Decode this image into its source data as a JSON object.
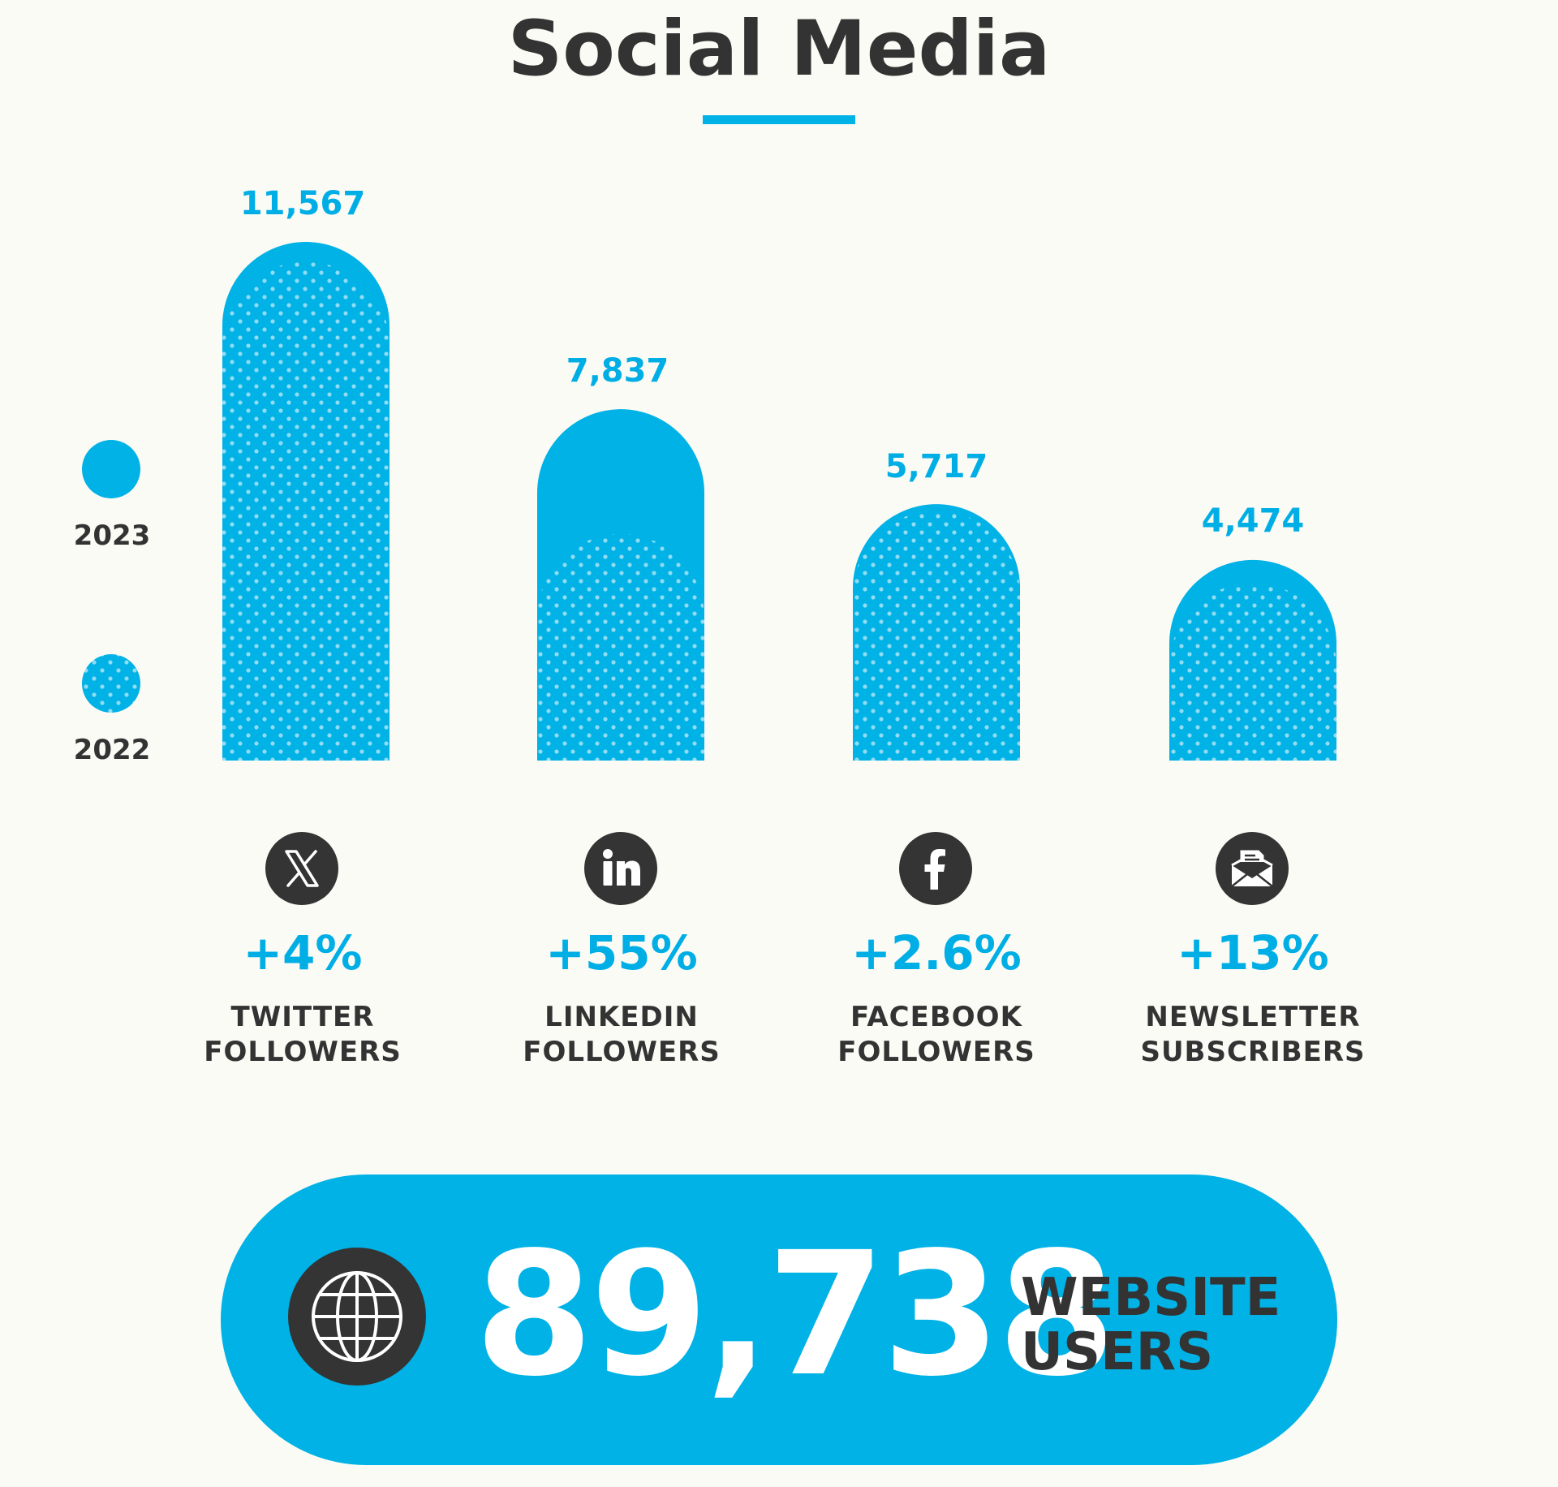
{
  "title": "Social Media",
  "colors": {
    "accent": "#00b2e6",
    "dark": "#343434",
    "dots": "#8fdcf4",
    "background": "#fbfbf5"
  },
  "legend": [
    {
      "label": "2023",
      "style": "solid"
    },
    {
      "label": "2022",
      "style": "dotted"
    }
  ],
  "chart_data": {
    "type": "bar",
    "categories": [
      "TWITTER FOLLOWERS",
      "LINKEDIN FOLLOWERS",
      "FACEBOOK FOLLOWERS",
      "NEWSLETTER SUBSCRIBERS"
    ],
    "series": [
      {
        "name": "2023",
        "values": [
          11567,
          7837,
          5717,
          4474
        ]
      },
      {
        "name": "2022",
        "values": [
          11122,
          5056,
          5572,
          3959
        ]
      }
    ],
    "value_labels": [
      "11,567",
      "7,837",
      "5,717",
      "4,474"
    ],
    "ylim": [
      0,
      11567
    ],
    "grid": false,
    "legend_position": "left"
  },
  "items": [
    {
      "icon": "x-logo-icon",
      "change": "+4%",
      "label_line1": "TWITTER",
      "label_line2": "FOLLOWERS"
    },
    {
      "icon": "linkedin-icon",
      "change": "+55%",
      "label_line1": "LINKEDIN",
      "label_line2": "FOLLOWERS"
    },
    {
      "icon": "facebook-icon",
      "change": "+2.6%",
      "label_line1": "FACEBOOK",
      "label_line2": "FOLLOWERS"
    },
    {
      "icon": "envelope-icon",
      "change": "+13%",
      "label_line1": "NEWSLETTER",
      "label_line2": "SUBSCRIBERS"
    }
  ],
  "website": {
    "icon": "globe-icon",
    "value": "89,738",
    "label_line1": "WEBSITE",
    "label_line2": "USERS"
  }
}
